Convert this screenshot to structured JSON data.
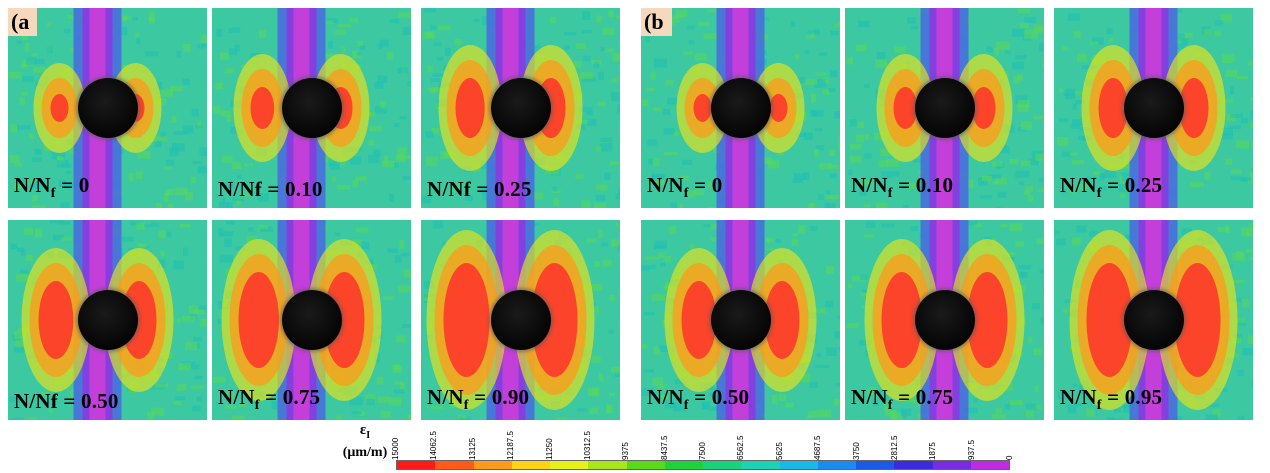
{
  "figure": {
    "group_a": {
      "tag": "(a",
      "panels": [
        {
          "label": "N/N",
          "sub": "f",
          "suffix": " = 0"
        },
        {
          "label": "N/Nf = 0.10",
          "sub": "",
          "suffix": ""
        },
        {
          "label": "N/Nf = 0.25",
          "sub": "",
          "suffix": ""
        },
        {
          "label": "N/Nf = 0.50",
          "sub": "",
          "suffix": ""
        },
        {
          "label": "N/N",
          "sub": "f",
          "suffix": " = 0.75"
        },
        {
          "label": "N/N",
          "sub": "f",
          "suffix": " = 0.90"
        }
      ]
    },
    "group_b": {
      "tag": "(b",
      "panels": [
        {
          "label": "N/N",
          "sub": "f",
          "suffix": " = 0"
        },
        {
          "label": "N/N",
          "sub": "f",
          "suffix": " = 0.10"
        },
        {
          "label": "N/N",
          "sub": "f",
          "suffix": " = 0.25"
        },
        {
          "label": "N/N",
          "sub": "f",
          "suffix": " = 0.50"
        },
        {
          "label": "N/N",
          "sub": "f",
          "suffix": " = 0.75"
        },
        {
          "label": "N/N",
          "sub": "f",
          "suffix": " = 0.95"
        }
      ]
    },
    "legend": {
      "symbol": "ε",
      "symbol_sub": "I",
      "unit": "(μm/m)",
      "ticks": [
        "15000",
        "14062.5",
        "13125",
        "12187.5",
        "11250",
        "10312.5",
        "9375",
        "8437.5",
        "7500",
        "6562.5",
        "5625",
        "4687.5",
        "3750",
        "2812.5",
        "1875",
        "937.5",
        "0"
      ],
      "colors": [
        "#ff1a1a",
        "#ff5a1a",
        "#ff9a1a",
        "#ffd21a",
        "#e8f01a",
        "#a8e61a",
        "#5ad81a",
        "#1ed23c",
        "#19d27a",
        "#1ad2b4",
        "#1ab8e6",
        "#1a8cf0",
        "#1a5ae6",
        "#3a2ae0",
        "#7a2ae0",
        "#c02ae0"
      ]
    }
  }
}
